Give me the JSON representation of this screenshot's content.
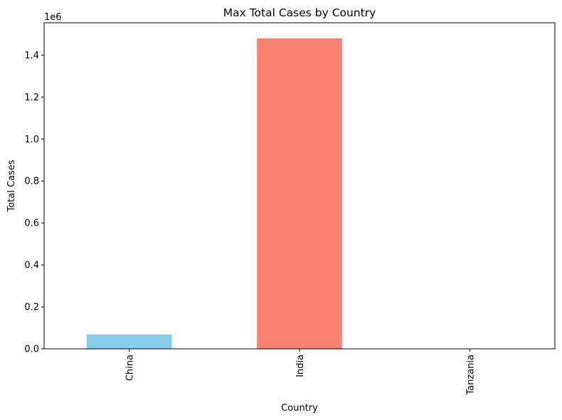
{
  "chart_data": {
    "type": "bar",
    "title": "Max Total Cases by Country",
    "xlabel": "Country",
    "ylabel": "Total Cases",
    "y_offset_label": "1e6",
    "categories": [
      "China",
      "India",
      "Tanzania"
    ],
    "values": [
      68000,
      1480000,
      0
    ],
    "colors": [
      "#87CEEB",
      "#FA8072",
      "#87CEEB"
    ],
    "ylim": [
      0,
      1554000
    ],
    "yticks": [
      0,
      200000,
      400000,
      600000,
      800000,
      1000000,
      1200000,
      1400000
    ],
    "ytick_labels": [
      "0.0",
      "0.2",
      "0.4",
      "0.6",
      "0.8",
      "1.0",
      "1.2",
      "1.4"
    ],
    "grid": false,
    "legend": "none"
  }
}
